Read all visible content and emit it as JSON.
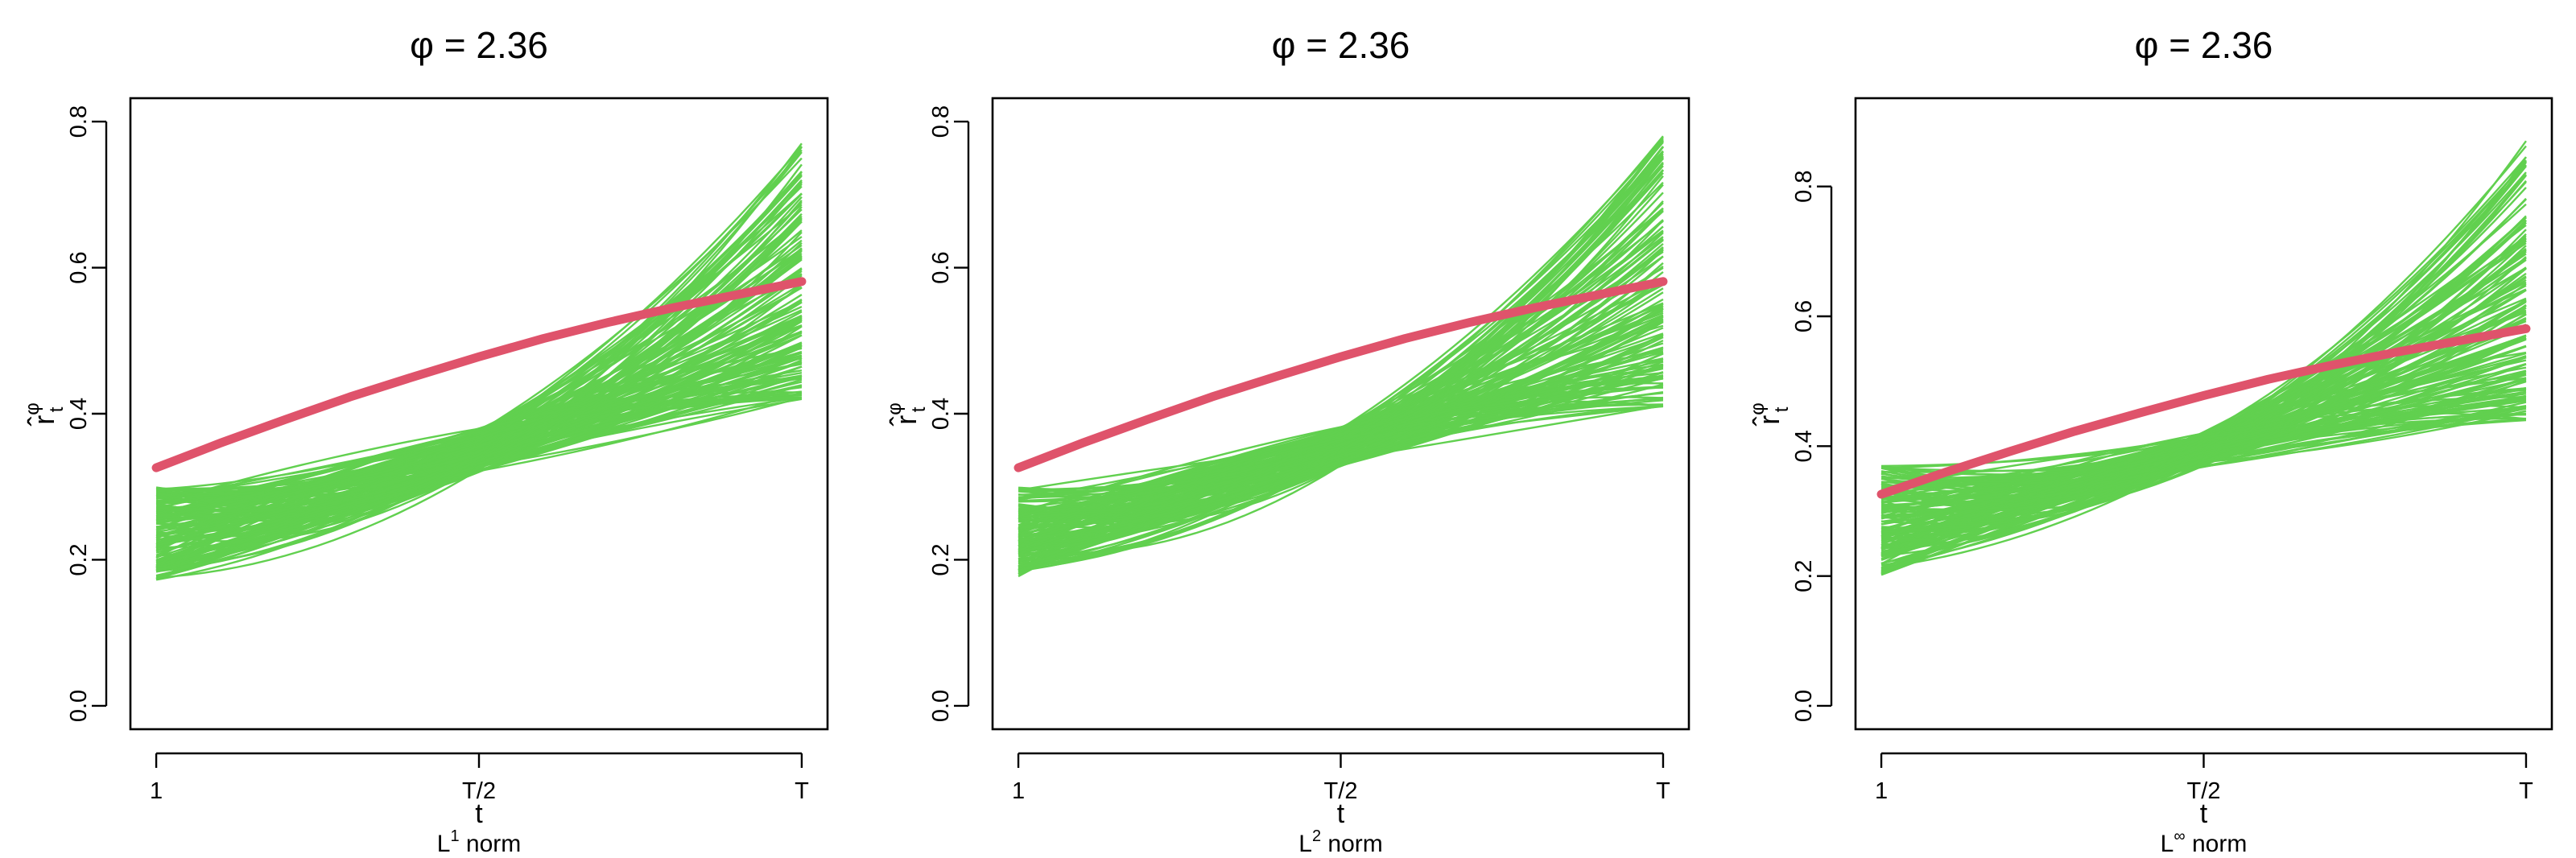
{
  "chart_data": [
    {
      "type": "line",
      "title": "φ = 2.36",
      "ylabel": {
        "base": "r̂",
        "superscript": "φ",
        "subscript": "t"
      },
      "xlabel": "t",
      "sublabel": {
        "base": "L",
        "superscript": "1",
        "suffix": " norm"
      },
      "x_ticks": [
        {
          "x": 0,
          "label": "1"
        },
        {
          "x": 0.5,
          "label": "T/2"
        },
        {
          "x": 1,
          "label": "T"
        }
      ],
      "xlim": [
        0,
        1
      ],
      "ylim": [
        0,
        0.8
      ],
      "y_ticks": [
        0,
        0.2,
        0.4,
        0.6,
        0.8
      ],
      "y_tick_labels": [
        "0.0",
        "0.2",
        "0.4",
        "0.6",
        "0.8"
      ],
      "colors": {
        "simulations": "#61D04F",
        "reference": "#DF536B"
      },
      "reference_curve": {
        "x": [
          0,
          0.1,
          0.2,
          0.3,
          0.4,
          0.5,
          0.6,
          0.7,
          0.8,
          0.9,
          1.0
        ],
        "y": [
          0.326,
          0.36,
          0.392,
          0.423,
          0.451,
          0.478,
          0.503,
          0.525,
          0.545,
          0.563,
          0.581
        ]
      },
      "simulation_envelope": {
        "start": [
          0.15,
          0.3
        ],
        "mid": [
          0.3,
          0.4
        ],
        "end": [
          0.42,
          0.77
        ]
      }
    },
    {
      "type": "line",
      "title": "φ = 2.36",
      "ylabel": {
        "base": "r̂",
        "superscript": "φ",
        "subscript": "t"
      },
      "xlabel": "t",
      "sublabel": {
        "base": "L",
        "superscript": "2",
        "suffix": " norm"
      },
      "x_ticks": [
        {
          "x": 0,
          "label": "1"
        },
        {
          "x": 0.5,
          "label": "T/2"
        },
        {
          "x": 1,
          "label": "T"
        }
      ],
      "xlim": [
        0,
        1
      ],
      "ylim": [
        0,
        0.8
      ],
      "y_ticks": [
        0,
        0.2,
        0.4,
        0.6,
        0.8
      ],
      "y_tick_labels": [
        "0.0",
        "0.2",
        "0.4",
        "0.6",
        "0.8"
      ],
      "colors": {
        "simulations": "#61D04F",
        "reference": "#DF536B"
      },
      "reference_curve": {
        "x": [
          0,
          0.1,
          0.2,
          0.3,
          0.4,
          0.5,
          0.6,
          0.7,
          0.8,
          0.9,
          1.0
        ],
        "y": [
          0.326,
          0.36,
          0.392,
          0.423,
          0.451,
          0.478,
          0.503,
          0.525,
          0.545,
          0.563,
          0.581
        ]
      },
      "simulation_envelope": {
        "start": [
          0.155,
          0.3
        ],
        "mid": [
          0.31,
          0.4
        ],
        "end": [
          0.41,
          0.78
        ]
      }
    },
    {
      "type": "line",
      "title": "φ = 2.36",
      "ylabel": {
        "base": "r̂",
        "superscript": "φ",
        "subscript": "t"
      },
      "xlabel": "t",
      "sublabel": {
        "base": "L",
        "superscript": "∞",
        "suffix": " norm"
      },
      "x_ticks": [
        {
          "x": 0,
          "label": "1"
        },
        {
          "x": 0.5,
          "label": "T/2"
        },
        {
          "x": 1,
          "label": "T"
        }
      ],
      "xlim": [
        0,
        1
      ],
      "ylim": [
        0,
        0.9
      ],
      "y_ticks": [
        0,
        0.2,
        0.4,
        0.6,
        0.8
      ],
      "y_tick_labels": [
        "0.0",
        "0.2",
        "0.4",
        "0.6",
        "0.8"
      ],
      "colors": {
        "simulations": "#61D04F",
        "reference": "#DF536B"
      },
      "reference_curve": {
        "x": [
          0,
          0.1,
          0.2,
          0.3,
          0.4,
          0.5,
          0.6,
          0.7,
          0.8,
          0.9,
          1.0
        ],
        "y": [
          0.326,
          0.36,
          0.392,
          0.423,
          0.451,
          0.478,
          0.503,
          0.525,
          0.545,
          0.563,
          0.581
        ]
      },
      "simulation_envelope": {
        "start": [
          0.17,
          0.37
        ],
        "mid": [
          0.35,
          0.44
        ],
        "end": [
          0.44,
          0.87
        ]
      }
    }
  ]
}
